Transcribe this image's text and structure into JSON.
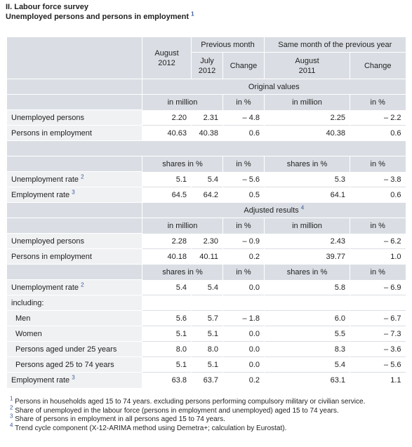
{
  "title": "II. Labour force survey",
  "subtitle": "Unemployed persons and persons in employment",
  "subtitle_note": "1",
  "header": {
    "august_2012_a": "August",
    "august_2012_b": "2012",
    "previous_month": "Previous month",
    "same_month": "Same month of the previous year",
    "july_a": "July",
    "july_b": "2012",
    "change": "Change",
    "august_2011_a": "August",
    "august_2011_b": "2011",
    "change2": "Change"
  },
  "sections": {
    "original": "Original values",
    "adjusted": "Adjusted results",
    "adjusted_note": "4"
  },
  "units": {
    "in_million": "in million",
    "in_pct": "in %",
    "shares_pct": "shares in %"
  },
  "rows": {
    "o_unemp": {
      "label": "Unemployed persons",
      "v": [
        "2.20",
        "2.31",
        "– 4.8",
        "2.25",
        "– 2.2"
      ]
    },
    "o_emp": {
      "label": "Persons in employment",
      "v": [
        "40.63",
        "40.38",
        "0.6",
        "40.38",
        "0.6"
      ]
    },
    "o_urate": {
      "label": "Unemployment rate",
      "note": "2",
      "v": [
        "5.1",
        "5.4",
        "– 5.6",
        "5.3",
        "– 3.8"
      ]
    },
    "o_erate": {
      "label": "Employment rate",
      "note": "3",
      "v": [
        "64.5",
        "64.2",
        "0.5",
        "64.1",
        "0.6"
      ]
    },
    "a_unemp": {
      "label": "Unemployed persons",
      "v": [
        "2.28",
        "2.30",
        "– 0.9",
        "2.43",
        "– 6.2"
      ]
    },
    "a_emp": {
      "label": "Persons in employment",
      "v": [
        "40.18",
        "40.11",
        "0.2",
        "39.77",
        "1.0"
      ]
    },
    "a_urate": {
      "label": "Unemployment rate",
      "note": "2",
      "v": [
        "5.4",
        "5.4",
        "0.0",
        "5.8",
        "– 6.9"
      ]
    },
    "including": {
      "label": "including:"
    },
    "men": {
      "label": "Men",
      "v": [
        "5.6",
        "5.7",
        "– 1.8",
        "6.0",
        "– 6.7"
      ]
    },
    "women": {
      "label": "Women",
      "v": [
        "5.1",
        "5.1",
        "0.0",
        "5.5",
        "– 7.3"
      ]
    },
    "under25": {
      "label": "Persons aged under 25 years",
      "v": [
        "8.0",
        "8.0",
        "0.0",
        "8.3",
        "– 3.6"
      ]
    },
    "aged25_74": {
      "label": "Persons aged 25 to 74 years",
      "v": [
        "5.1",
        "5.1",
        "0.0",
        "5.4",
        "– 5.6"
      ]
    },
    "a_erate": {
      "label": "Employment rate",
      "note": "3",
      "v": [
        "63.8",
        "63.7",
        "0.2",
        "63.1",
        "1.1"
      ]
    }
  },
  "footnotes": [
    {
      "n": "1",
      "text": "Persons in households aged 15 to 74 years. excluding persons performing compulsory military or civilian service."
    },
    {
      "n": "2",
      "text": "Share of unemployed in the labour force (persons in employment and unemployed) aged 15 to 74 years."
    },
    {
      "n": "3",
      "text": "Share of persons in employment in all persons aged 15 to 74 years."
    },
    {
      "n": "4",
      "text": "Trend cycle component (X-12-ARIMA method using Demetra+; calculation by Eurostat)."
    }
  ]
}
